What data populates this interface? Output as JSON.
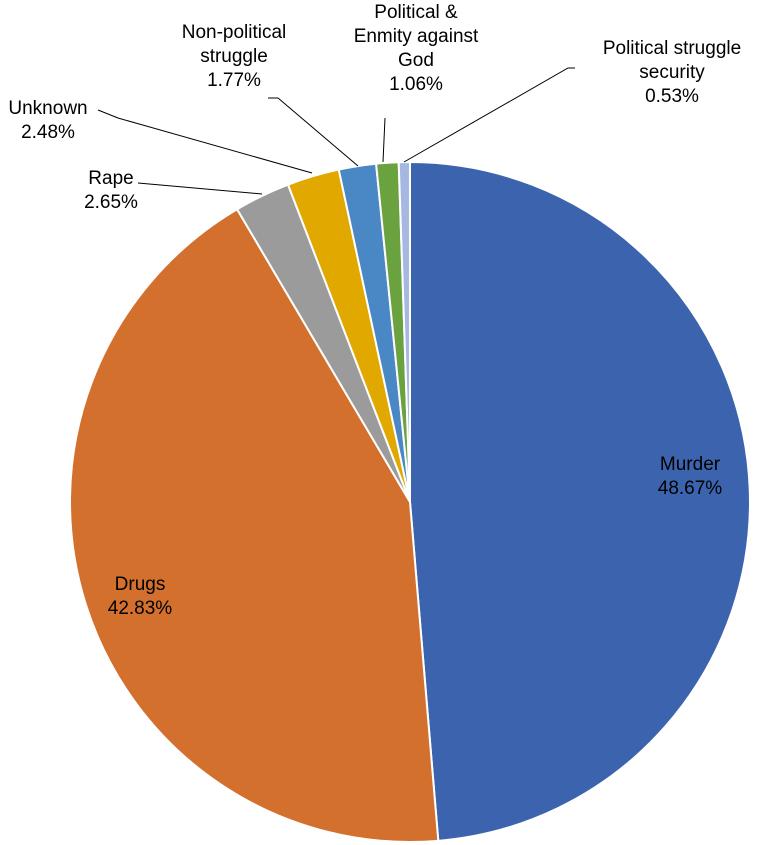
{
  "chart_data": {
    "type": "pie",
    "title": "",
    "start_angle_deg": 0,
    "direction": "clockwise",
    "slices": [
      {
        "label": "Murder",
        "percent_label": "48.67%",
        "value": 48.67,
        "color": "#3C64AE",
        "label_lines": [
          "Murder"
        ]
      },
      {
        "label": "Drugs",
        "percent_label": "42.83%",
        "value": 42.83,
        "color": "#D3702D",
        "label_lines": [
          "Drugs"
        ]
      },
      {
        "label": "Rape",
        "percent_label": "2.65%",
        "value": 2.65,
        "color": "#9B9B9B",
        "label_lines": [
          "Rape"
        ]
      },
      {
        "label": "Unknown",
        "percent_label": "2.48%",
        "value": 2.48,
        "color": "#E1A800",
        "label_lines": [
          "Unknown"
        ]
      },
      {
        "label": "Non-political struggle",
        "percent_label": "1.77%",
        "value": 1.77,
        "color": "#4A87C5",
        "label_lines": [
          "Non-political",
          "struggle"
        ]
      },
      {
        "label": "Political & Enmity against God",
        "percent_label": "1.06%",
        "value": 1.06,
        "color": "#6AA23F",
        "label_lines": [
          "Political &",
          "Enmity against",
          "God"
        ]
      },
      {
        "label": "Political struggle security",
        "percent_label": "0.53%",
        "value": 0.53,
        "color": "#A6B7E2",
        "label_lines": [
          "Political struggle",
          "security"
        ]
      }
    ]
  }
}
